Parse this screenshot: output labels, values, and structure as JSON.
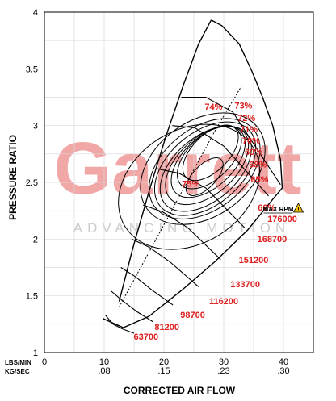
{
  "chart_data": {
    "type": "compressor-map",
    "xlabel": "CORRECTED AIR FLOW",
    "ylabel": "PRESSURE RATIO",
    "x_unit_label_lbs": "LBS/MIN",
    "x_unit_label_kg": "KG/SEC",
    "xlim": [
      0,
      45
    ],
    "ylim": [
      1,
      4
    ],
    "x_ticks_lbs": [
      "0",
      "10",
      "20",
      "30",
      "40"
    ],
    "x_ticks_kg": [
      ".08",
      ".15",
      ".23",
      ".30"
    ],
    "y_ticks": [
      "1",
      "1.5",
      "2",
      "2.5",
      "3",
      "3.5",
      "4"
    ],
    "grid": true,
    "watermark": {
      "main": "Garrett",
      "sub": "ADVANCING MOTION",
      "color": "#f2a7a7"
    },
    "label_color": "#dd1f1f",
    "line_color": "#000000",
    "max_rpm_label": "MAX RPM",
    "surge_line": [
      [
        12.5,
        1.45
      ],
      [
        14.8,
        1.92
      ],
      [
        17.5,
        2.42
      ],
      [
        20.3,
        2.9
      ],
      [
        23.2,
        3.35
      ],
      [
        25.8,
        3.72
      ],
      [
        27.9,
        3.93
      ]
    ],
    "choke_line": [
      [
        9.8,
        1.3
      ],
      [
        13.2,
        1.22
      ],
      [
        17.5,
        1.32
      ],
      [
        23,
        1.55
      ],
      [
        28.5,
        1.8
      ],
      [
        34,
        2.08
      ],
      [
        38.2,
        2.35
      ],
      [
        39.8,
        2.45
      ],
      [
        39.5,
        2.7
      ],
      [
        38.2,
        3.0
      ],
      [
        36.5,
        3.25
      ],
      [
        34.7,
        3.48
      ],
      [
        32.6,
        3.72
      ],
      [
        29.7,
        3.88
      ],
      [
        27.9,
        3.93
      ]
    ],
    "speed_lines": [
      {
        "label": "63700",
        "points": [
          [
            10.2,
            1.33
          ],
          [
            11.5,
            1.25
          ],
          [
            13,
            1.21
          ],
          [
            15,
            1.17
          ]
        ]
      },
      {
        "label": "81200",
        "points": [
          [
            11.2,
            1.54
          ],
          [
            13,
            1.46
          ],
          [
            15.5,
            1.36
          ],
          [
            18.2,
            1.27
          ]
        ]
      },
      {
        "label": "98700",
        "points": [
          [
            12.8,
            1.75
          ],
          [
            15.2,
            1.67
          ],
          [
            18,
            1.55
          ],
          [
            21.5,
            1.42
          ]
        ]
      },
      {
        "label": "116200",
        "points": [
          [
            14.6,
            2.0
          ],
          [
            17.5,
            1.93
          ],
          [
            21,
            1.8
          ],
          [
            25.8,
            1.58
          ]
        ]
      },
      {
        "label": "133700",
        "points": [
          [
            16.5,
            2.3
          ],
          [
            19.8,
            2.24
          ],
          [
            24,
            2.1
          ],
          [
            29.5,
            1.82
          ]
        ]
      },
      {
        "label": "151200",
        "points": [
          [
            18.8,
            2.62
          ],
          [
            22.5,
            2.58
          ],
          [
            27,
            2.45
          ],
          [
            33.5,
            2.1
          ]
        ]
      },
      {
        "label": "168700",
        "points": [
          [
            21.4,
            3.0
          ],
          [
            25.2,
            2.98
          ],
          [
            30,
            2.82
          ],
          [
            37.5,
            2.38
          ]
        ]
      },
      {
        "label": "176000",
        "points": [
          [
            22.9,
            3.25
          ],
          [
            27,
            3.25
          ],
          [
            31.5,
            3.12
          ],
          [
            39.5,
            2.48
          ]
        ]
      }
    ],
    "efficiency_islands": [
      {
        "label": "60%",
        "cx": 24.2,
        "cy": 2.46,
        "rx": 12.6,
        "ry": 0.5,
        "angle": -32
      },
      {
        "label": "65%",
        "cx": 26.5,
        "cy": 2.62,
        "rx": 11.5,
        "ry": 0.42,
        "angle": -36
      },
      {
        "label": "68%",
        "cx": 26.8,
        "cy": 2.62,
        "rx": 10.5,
        "ry": 0.36,
        "angle": -38
      },
      {
        "label": "69%",
        "cx": 26.9,
        "cy": 2.62,
        "rx": 9.8,
        "ry": 0.32,
        "angle": -40
      },
      {
        "label": "70%",
        "cx": 27,
        "cy": 2.62,
        "rx": 9.0,
        "ry": 0.28,
        "angle": -41
      },
      {
        "label": "71%",
        "cx": 27.2,
        "cy": 2.65,
        "rx": 8.3,
        "ry": 0.25,
        "angle": -42
      },
      {
        "label": "72%",
        "cx": 27.4,
        "cy": 2.68,
        "rx": 7.5,
        "ry": 0.22,
        "angle": -43
      },
      {
        "label": "73%",
        "cx": 27.6,
        "cy": 2.72,
        "rx": 6.6,
        "ry": 0.19,
        "angle": -44
      },
      {
        "label": "74%",
        "cx": 27.8,
        "cy": 2.76,
        "rx": 5.8,
        "ry": 0.16,
        "angle": -45
      },
      {
        "label": "75%",
        "cx": 26.8,
        "cy": 2.55,
        "rx": 4.0,
        "ry": 0.1,
        "angle": -46
      }
    ],
    "efficiency_label_positions": [
      {
        "label": "74%",
        "x": 28.3,
        "y": 3.17
      },
      {
        "label": "73%",
        "x": 33.3,
        "y": 3.18
      },
      {
        "label": "72%",
        "x": 33.8,
        "y": 3.07
      },
      {
        "label": "71%",
        "x": 34.2,
        "y": 2.97
      },
      {
        "label": "70%",
        "x": 34.6,
        "y": 2.87
      },
      {
        "label": "69%",
        "x": 35.0,
        "y": 2.77
      },
      {
        "label": "68%",
        "x": 35.7,
        "y": 2.66
      },
      {
        "label": "65%",
        "x": 36.0,
        "y": 2.53
      },
      {
        "label": "60%",
        "x": 37.2,
        "y": 2.28
      },
      {
        "label": "75%",
        "x": 24.5,
        "y": 2.49
      }
    ],
    "peak_line": [
      [
        12.5,
        1.4
      ],
      [
        28.5,
        2.95
      ],
      [
        33.0,
        3.35
      ]
    ]
  }
}
